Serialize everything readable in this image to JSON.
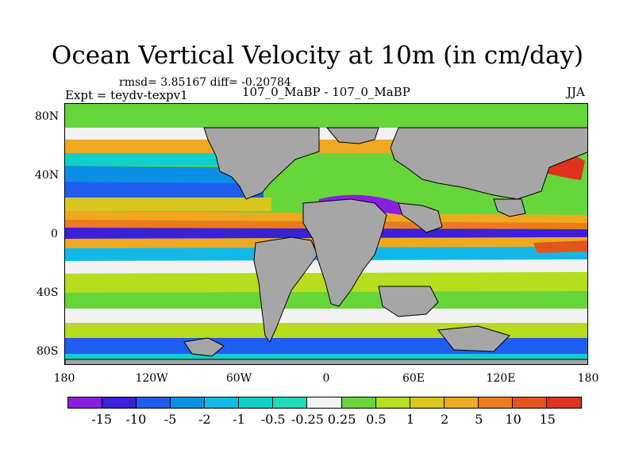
{
  "title": "Ocean Vertical Velocity at 10m (in cm/day)",
  "stats": "rmsd= 3.85167 diff= -0.20784",
  "experiment": "Expt = teydv-texpv1",
  "runs": "107_0_MaBP - 107_0_MaBP",
  "season": "JJA",
  "y_ticks": [
    "80N",
    "40N",
    "0",
    "40S",
    "80S"
  ],
  "x_ticks": [
    "180",
    "120W",
    "60W",
    "0",
    "60E",
    "120E",
    "180"
  ],
  "colorbar": {
    "colors": [
      "#8a1fdf",
      "#3c1fd6",
      "#1e5ef0",
      "#0a8ee6",
      "#13b8e6",
      "#12cfc6",
      "#1ed9b9",
      "#f2f2f2",
      "#66d63a",
      "#b6dd1e",
      "#d9c61f",
      "#f0a81f",
      "#ee7a1e",
      "#e4551e",
      "#e0321c"
    ],
    "labels": [
      "-15",
      "-10",
      "-5",
      "-2",
      "-1",
      "-0.5",
      "-0.25",
      "0.25",
      "0.5",
      "1",
      "2",
      "5",
      "10",
      "15"
    ]
  },
  "land_color": "#a6a6a6",
  "ocean_background": "#66d63a"
}
